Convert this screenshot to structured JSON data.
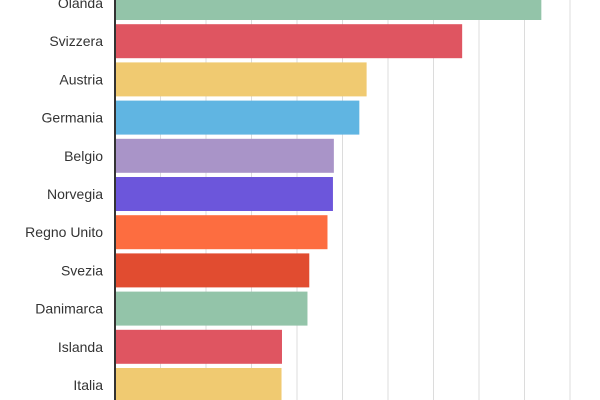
{
  "chart_data": {
    "type": "bar",
    "orientation": "horizontal",
    "title": "",
    "xlabel": "",
    "ylabel": "",
    "grid": true,
    "xlim": [
      0,
      10
    ],
    "categories": [
      "Olanda",
      "Svizzera",
      "Austria",
      "Germania",
      "Belgio",
      "Norvegia",
      "Regno Unito",
      "Svezia",
      "Danimarca",
      "Islanda",
      "Italia"
    ],
    "values": [
      9.37,
      7.63,
      5.53,
      5.37,
      4.81,
      4.79,
      4.67,
      4.27,
      4.23,
      3.67,
      3.66
    ],
    "colors": [
      "#93c4a9",
      "#df5561",
      "#f0ca71",
      "#60b5e2",
      "#a994c8",
      "#6c56db",
      "#fd6d40",
      "#e14c30",
      "#93c4a9",
      "#df5561",
      "#f0ca71"
    ]
  }
}
